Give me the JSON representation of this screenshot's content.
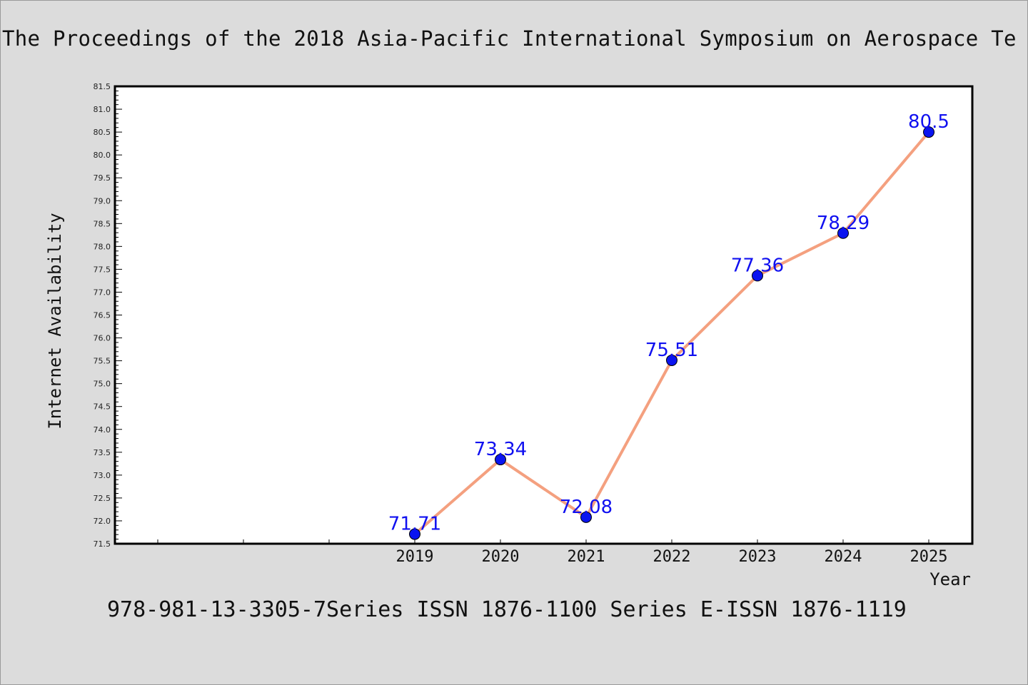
{
  "header": {
    "title": "The Proceedings of the 2018 Asia-Pacific International Symposium on Aerospace Te"
  },
  "footer": {
    "text": "978-981-13-3305-7Series ISSN 1876-1100 Series E-ISSN 1876-1119"
  },
  "colors": {
    "line": "#f4a07f",
    "marker": "#0a14f0",
    "label": "#1010f0",
    "background": "#dcdcdc",
    "plot_area": "#ffffff"
  },
  "chart_data": {
    "type": "line",
    "title": "",
    "xlabel": "Year",
    "ylabel": "Internet Availability",
    "categories": [
      "2019",
      "2020",
      "2021",
      "2022",
      "2023",
      "2024",
      "2025"
    ],
    "series": [
      {
        "values": [
          71.71,
          73.34,
          72.08,
          75.51,
          77.36,
          78.29,
          80.5
        ]
      }
    ],
    "data_labels": [
      "71.71",
      "73.34",
      "72.08",
      "75.51",
      "77.36",
      "78.29",
      "80.5"
    ],
    "ylim": [
      71.5,
      81.5
    ],
    "ytick_step": 0.5,
    "grid": false,
    "legend": "none",
    "marker": "circle"
  }
}
